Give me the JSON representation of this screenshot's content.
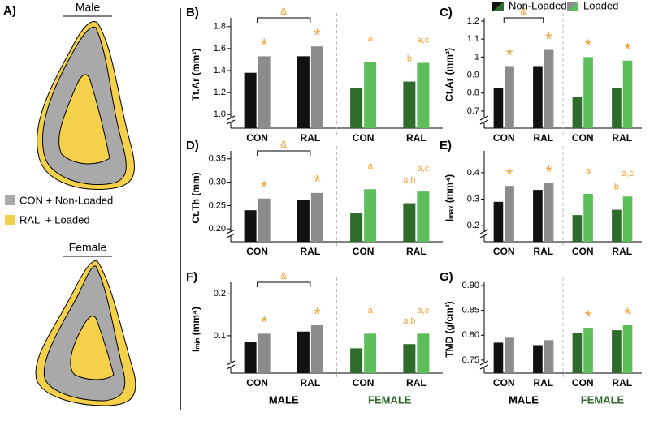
{
  "panel_a": {
    "label": "A)",
    "male": "Male",
    "female": "Female",
    "legend": [
      {
        "text": "CON + Non-Loaded",
        "color": "#a9a9a9"
      },
      {
        "text": "RAL  + Loaded",
        "color": "#f5d04b"
      }
    ]
  },
  "legend": [
    {
      "name": "Non-Loaded",
      "colors": [
        "#111111",
        "#2f6b2a"
      ]
    },
    {
      "name": "Loaded",
      "colors": [
        "#8c8c8c",
        "#5cbf5a"
      ]
    }
  ],
  "chart_data": [
    {
      "type": "bar",
      "label": "B)",
      "ylabel": "Tt.Ar (mm²)",
      "categories": [
        "CON",
        "RAL",
        "CON",
        "RAL"
      ],
      "ylim": [
        0.95,
        1.85
      ],
      "yticks": [
        {
          "value": 1.0,
          "label": "1.0"
        },
        1.2,
        1.4,
        1.6,
        1.8
      ],
      "bracket": "&",
      "series": [
        {
          "colors": [
            "#111111",
            "#111111",
            "#2f6b2a",
            "#2f6b2a"
          ],
          "values": [
            1.38,
            1.53,
            1.24,
            1.3
          ],
          "annotations": [
            null,
            null,
            null,
            "b"
          ]
        },
        {
          "colors": [
            "#8c8c8c",
            "#8c8c8c",
            "#5cbf5a",
            "#5cbf5a"
          ],
          "values": [
            1.53,
            1.62,
            1.48,
            1.47
          ],
          "annotations": [
            "*",
            "*",
            "a",
            "a,c"
          ]
        }
      ]
    },
    {
      "type": "bar",
      "label": "C)",
      "ylabel": "Ct.Ar (mm²)",
      "categories": [
        "CON",
        "RAL",
        "CON",
        "RAL"
      ],
      "ylim": [
        0.65,
        1.2
      ],
      "yticks": [
        0.7,
        0.8,
        0.9,
        1,
        1.1,
        1.2
      ],
      "bracket": "&",
      "legend": true,
      "series": [
        {
          "colors": [
            "#111111",
            "#111111",
            "#2f6b2a",
            "#2f6b2a"
          ],
          "values": [
            0.83,
            0.95,
            0.78,
            0.83
          ],
          "annotations": [
            null,
            null,
            null,
            null
          ]
        },
        {
          "colors": [
            "#8c8c8c",
            "#8c8c8c",
            "#5cbf5a",
            "#5cbf5a"
          ],
          "values": [
            0.95,
            1.04,
            1.0,
            0.98
          ],
          "annotations": [
            "*",
            "*",
            "*",
            "*"
          ]
        }
      ]
    },
    {
      "type": "bar",
      "label": "D)",
      "ylabel": "Ct.Th (mm)",
      "categories": [
        "CON",
        "RAL",
        "CON",
        "RAL"
      ],
      "ylim": [
        0.19,
        0.36
      ],
      "yticks": [
        {
          "value": 0.2,
          "label": "0.20"
        },
        0.25,
        {
          "value": 0.3,
          "label": "0.30"
        },
        0.35
      ],
      "bracket": "&",
      "series": [
        {
          "colors": [
            "#111111",
            "#111111",
            "#2f6b2a",
            "#2f6b2a"
          ],
          "values": [
            0.24,
            0.262,
            0.235,
            0.255
          ],
          "annotations": [
            null,
            null,
            null,
            "a,b"
          ]
        },
        {
          "colors": [
            "#8c8c8c",
            "#8c8c8c",
            "#5cbf5a",
            "#5cbf5a"
          ],
          "values": [
            0.265,
            0.277,
            0.285,
            0.28
          ],
          "annotations": [
            "*",
            "*",
            "a",
            "a,c"
          ]
        }
      ]
    },
    {
      "type": "bar",
      "label": "E)",
      "ylabel": "Iₘₐₓ (mm⁴)",
      "categories": [
        "CON",
        "RAL",
        "CON",
        "RAL"
      ],
      "ylim": [
        0.17,
        0.47
      ],
      "yticks": [
        0.2,
        0.3,
        0.4
      ],
      "series": [
        {
          "colors": [
            "#111111",
            "#111111",
            "#2f6b2a",
            "#2f6b2a"
          ],
          "values": [
            0.29,
            0.335,
            0.24,
            0.26
          ],
          "annotations": [
            null,
            null,
            null,
            "b"
          ]
        },
        {
          "colors": [
            "#8c8c8c",
            "#8c8c8c",
            "#5cbf5a",
            "#5cbf5a"
          ],
          "values": [
            0.35,
            0.36,
            0.32,
            0.31
          ],
          "annotations": [
            "*",
            "*",
            "a",
            "a,c"
          ]
        }
      ]
    },
    {
      "type": "bar",
      "label": "F)",
      "ylabel": "Iₘᵢₙ (mm⁴)",
      "categories": [
        "CON",
        "RAL",
        "CON",
        "RAL"
      ],
      "ylim": [
        0.03,
        0.22
      ],
      "yticks": [
        0.1,
        0.2
      ],
      "bracket": "&",
      "groups": [
        "MALE",
        "FEMALE"
      ],
      "series": [
        {
          "colors": [
            "#111111",
            "#111111",
            "#2f6b2a",
            "#2f6b2a"
          ],
          "values": [
            0.085,
            0.11,
            0.07,
            0.08
          ],
          "annotations": [
            null,
            null,
            null,
            "a,b"
          ]
        },
        {
          "colors": [
            "#8c8c8c",
            "#8c8c8c",
            "#5cbf5a",
            "#5cbf5a"
          ],
          "values": [
            0.105,
            0.125,
            0.105,
            0.105
          ],
          "annotations": [
            "*",
            "*",
            "a",
            "a,c"
          ]
        }
      ]
    },
    {
      "type": "bar",
      "label": "G)",
      "ylabel": "TMD (g/cm³)",
      "categories": [
        "CON",
        "RAL",
        "CON",
        "RAL"
      ],
      "ylim": [
        0.74,
        0.9
      ],
      "yticks": [
        0.75,
        {
          "value": 0.8,
          "label": "0.80"
        },
        0.85,
        {
          "value": 0.9,
          "label": "0.90"
        }
      ],
      "groups": [
        "MALE",
        "FEMALE"
      ],
      "series": [
        {
          "colors": [
            "#111111",
            "#111111",
            "#2f6b2a",
            "#2f6b2a"
          ],
          "values": [
            0.785,
            0.78,
            0.805,
            0.81
          ],
          "annotations": [
            null,
            null,
            null,
            null
          ]
        },
        {
          "colors": [
            "#8c8c8c",
            "#8c8c8c",
            "#5cbf5a",
            "#5cbf5a"
          ],
          "values": [
            0.795,
            0.79,
            0.815,
            0.82
          ],
          "annotations": [
            null,
            null,
            "*",
            "*"
          ]
        }
      ]
    }
  ]
}
